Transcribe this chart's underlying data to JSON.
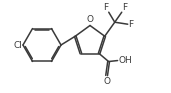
{
  "background_color": "#ffffff",
  "bond_color": "#3a3a3a",
  "bond_width": 1.1,
  "dbo": 0.008,
  "figsize": [
    1.71,
    0.93
  ],
  "dpi": 100,
  "xlim": [
    0,
    1.71
  ],
  "ylim": [
    0,
    0.93
  ]
}
